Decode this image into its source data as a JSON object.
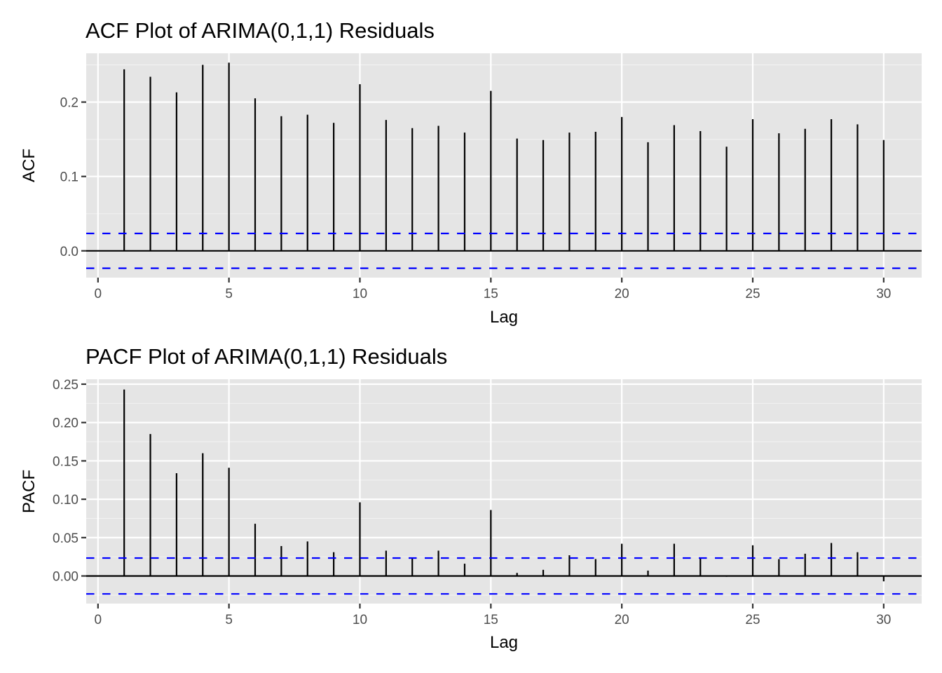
{
  "chart_data": [
    {
      "type": "bar",
      "subtype": "correlogram",
      "title": "ACF Plot of ARIMA(0,1,1) Residuals",
      "xlabel": "Lag",
      "ylabel": "ACF",
      "xlim": [
        -0.45,
        31.45
      ],
      "ylim": [
        -0.036,
        0.2656
      ],
      "xticks": [
        0,
        5,
        10,
        15,
        20,
        25,
        30
      ],
      "xtick_labels": [
        "0",
        "5",
        "10",
        "15",
        "20",
        "25",
        "30"
      ],
      "yticks": [
        0.0,
        0.1,
        0.2
      ],
      "ytick_labels": [
        "0.0",
        "0.1",
        "0.2"
      ],
      "yminor": [
        0.05,
        0.15,
        0.25
      ],
      "grid": true,
      "confidence_bound": 0.0234,
      "lags": [
        1,
        2,
        3,
        4,
        5,
        6,
        7,
        8,
        9,
        10,
        11,
        12,
        13,
        14,
        15,
        16,
        17,
        18,
        19,
        20,
        21,
        22,
        23,
        24,
        25,
        26,
        27,
        28,
        29,
        30
      ],
      "values": [
        0.244,
        0.234,
        0.213,
        0.25,
        0.253,
        0.205,
        0.181,
        0.183,
        0.172,
        0.224,
        0.176,
        0.165,
        0.168,
        0.159,
        0.215,
        0.151,
        0.149,
        0.159,
        0.16,
        0.18,
        0.146,
        0.169,
        0.161,
        0.14,
        0.177,
        0.158,
        0.164,
        0.177,
        0.17,
        0.149
      ]
    },
    {
      "type": "bar",
      "subtype": "correlogram",
      "title": "PACF Plot of ARIMA(0,1,1) Residuals",
      "xlabel": "Lag",
      "ylabel": "PACF",
      "xlim": [
        -0.45,
        31.45
      ],
      "ylim": [
        -0.036,
        0.2564
      ],
      "xticks": [
        0,
        5,
        10,
        15,
        20,
        25,
        30
      ],
      "xtick_labels": [
        "0",
        "5",
        "10",
        "15",
        "20",
        "25",
        "30"
      ],
      "yticks": [
        0.0,
        0.05,
        0.1,
        0.15,
        0.2,
        0.25
      ],
      "ytick_labels": [
        "0.00",
        "0.05",
        "0.10",
        "0.15",
        "0.20",
        "0.25"
      ],
      "yminor": [
        -0.025,
        0.025,
        0.075,
        0.125,
        0.175,
        0.225
      ],
      "grid": true,
      "confidence_bound": 0.0234,
      "lags": [
        1,
        2,
        3,
        4,
        5,
        6,
        7,
        8,
        9,
        10,
        11,
        12,
        13,
        14,
        15,
        16,
        17,
        18,
        19,
        20,
        21,
        22,
        23,
        24,
        25,
        26,
        27,
        28,
        29,
        30
      ],
      "values": [
        0.243,
        0.185,
        0.134,
        0.16,
        0.141,
        0.068,
        0.039,
        0.045,
        0.031,
        0.096,
        0.033,
        0.023,
        0.033,
        0.016,
        0.086,
        0.004,
        0.008,
        0.027,
        0.022,
        0.042,
        0.007,
        0.042,
        0.024,
        -0.001,
        0.04,
        0.022,
        0.029,
        0.043,
        0.031,
        -0.007
      ]
    }
  ],
  "colors": {
    "panel_background": "#e5e5e5",
    "grid_major": "#ffffff",
    "grid_minor": "#f2f2f2",
    "bar": "#000000",
    "zero_line": "#000000",
    "confidence_line": "#0000ff",
    "tick_text": "#4d4d4d"
  }
}
